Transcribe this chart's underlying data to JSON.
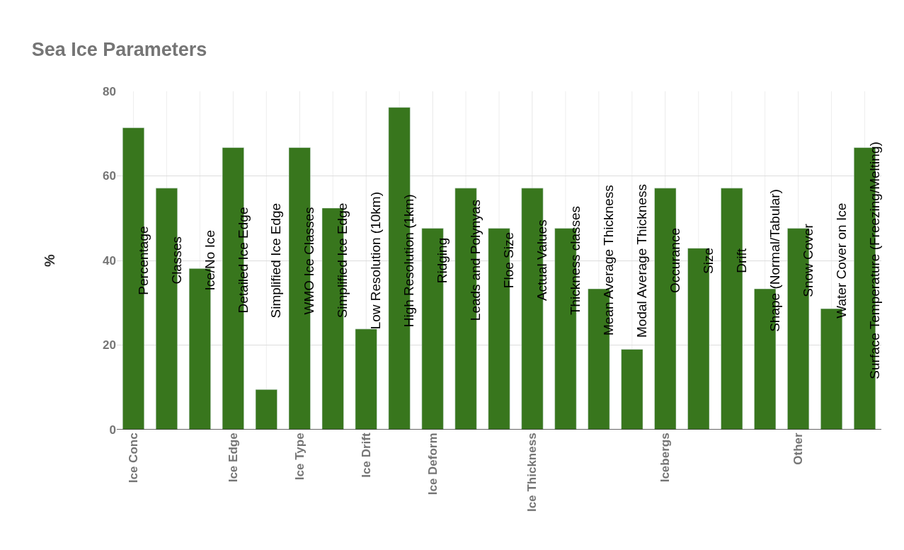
{
  "chart_data": {
    "type": "bar",
    "title": "Sea Ice Parameters",
    "ylabel": "%",
    "categories": [
      "Ice Conc",
      null,
      null,
      "Ice Edge",
      null,
      "Ice Type",
      null,
      "Ice Drift",
      null,
      "Ice Deform",
      null,
      null,
      "Ice Thickness",
      null,
      null,
      null,
      "Icebergs",
      null,
      null,
      null,
      "Other",
      null,
      null
    ],
    "values": [
      71.4,
      57.1,
      38.1,
      66.7,
      9.5,
      66.7,
      52.4,
      23.8,
      76.2,
      47.6,
      57.1,
      47.6,
      57.1,
      47.6,
      33.3,
      19.0,
      57.1,
      42.9,
      57.1,
      33.3,
      47.6,
      28.6,
      66.7
    ],
    "annotations": [
      "Percentage",
      "Classes",
      "Ice/No Ice",
      "Detailed Ice Edge",
      "Simplified Ice Edge",
      "WMO Ice Classes",
      "Simplified Ice Edge",
      "Low Resolution (10km)",
      "High Resolution (1km)",
      "Ridging",
      "Leads and Polynyas",
      "Floe Size",
      "Actual Values",
      "Thickness classes",
      "Mean Average Thickness",
      "Modal Average Thickness",
      "Occurance",
      "Size",
      "Drift",
      "Shape (Normal/Tabular)",
      "Snow Cover",
      "Water Cover on Ice",
      "Surface Temperature (Freezing/Melting)"
    ],
    "color": "#38761d",
    "ylim": [
      0,
      80
    ],
    "yticks": [
      0,
      20,
      40,
      60,
      80
    ],
    "grid": true
  }
}
